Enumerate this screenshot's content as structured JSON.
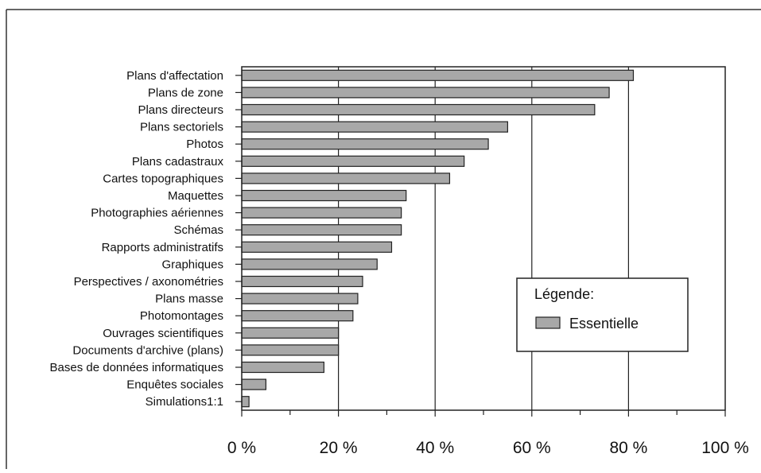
{
  "chart_data": {
    "type": "bar",
    "orientation": "horizontal",
    "title": "",
    "xlabel": "",
    "ylabel": "",
    "xlim": [
      0,
      100
    ],
    "x_ticks": [
      "0 %",
      "20 %",
      "40 %",
      "60 %",
      "80 %",
      "100 %"
    ],
    "grid": "vertical gridlines at 20 % intervals",
    "legend": {
      "title": "Légende:",
      "placement": "center-right"
    },
    "categories": [
      "Plans d'affectation",
      "Plans de zone",
      "Plans directeurs",
      "Plans sectoriels",
      "Photos",
      "Plans cadastraux",
      "Cartes topographiques",
      "Maquettes",
      "Photographies aériennes",
      "Schémas",
      "Rapports administratifs",
      "Graphiques",
      "Perspectives / axonométries",
      "Plans masse",
      "Photomontages",
      "Ouvrages scientifiques",
      "Documents d'archive (plans)",
      "Bases de données informatiques",
      "Enquêtes sociales",
      "Simulations1:1"
    ],
    "series": [
      {
        "name": "Essentielle",
        "color": "#a8a8a8",
        "values": [
          81,
          76,
          73,
          55,
          51,
          46,
          43,
          34,
          33,
          33,
          31,
          28,
          25,
          24,
          23,
          20,
          20,
          17,
          5,
          1.5
        ]
      }
    ]
  }
}
